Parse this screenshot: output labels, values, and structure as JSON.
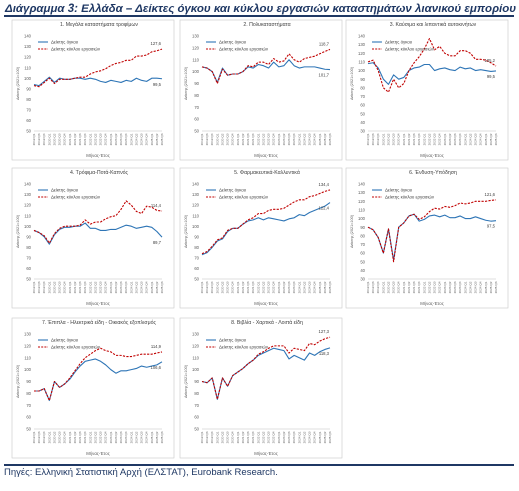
{
  "page": {
    "title": "Διάγραμμα 3: Ελλάδα – Δείκτες όγκου και κύκλου εργασιών καταστημάτων λιανικού εμπορίου",
    "source": "Πηγές: Ελληνική Στατιστική Αρχή (ΕΛΣΤΑΤ), Eurobank Research."
  },
  "colors": {
    "volume": "#2e75b6",
    "turnover": "#c00000"
  },
  "chart_data": [
    {
      "type": "line",
      "title": "1. Μεγάλα καταστήματα τροφίμων",
      "xlabel": "Μήνας-Έτος",
      "ylabel": "Δείκτης (2021=100)",
      "ylim": [
        50,
        140
      ],
      "yticks": [
        50,
        60,
        70,
        80,
        90,
        100,
        110,
        120,
        130,
        140
      ],
      "categories": [
        "2019 Q1",
        "2019 Q3",
        "2019 Q4",
        "2020 Q1",
        "2020 Q2",
        "2020 Q3",
        "2020 Q4",
        "2021 Q1",
        "2021 Q2",
        "2021 Q3",
        "2021 Q4",
        "2022 Q1",
        "2022 Q2",
        "2022 Q3",
        "2022 Q4",
        "2023 Q1",
        "2023 Q2",
        "2023 Q3",
        "2023 Q4",
        "2024 Q1",
        "2024 Q2",
        "2024 Q3",
        "2024 Q4",
        "2025 Q1",
        "2025 Q2",
        "2025 Q3"
      ],
      "series": [
        {
          "name": "Δείκτης όγκου",
          "values": [
            94,
            93,
            97,
            101,
            96,
            100,
            99,
            99,
            100,
            100,
            99,
            100,
            99,
            97,
            96,
            98,
            97,
            96,
            98,
            97,
            100,
            98,
            97,
            100,
            100,
            99.5
          ]
        },
        {
          "name": "Δείκτης κύκλου εργασιών",
          "values": [
            93,
            92,
            96,
            100,
            95,
            99,
            99,
            99,
            100,
            101,
            101,
            104,
            106,
            107,
            109,
            112,
            114,
            115,
            117,
            117,
            121,
            121,
            122,
            125,
            126,
            127.6
          ]
        }
      ],
      "annotations": [
        "127,6",
        "99,5"
      ],
      "grid": false,
      "legend": "top-left"
    },
    {
      "type": "line",
      "title": "2. Πολυκαταστήματα",
      "xlabel": "Μήνας-Έτος",
      "ylabel": "Δείκτης (2021=100)",
      "ylim": [
        50,
        130
      ],
      "yticks": [
        50,
        60,
        70,
        80,
        90,
        100,
        110,
        120,
        130
      ],
      "categories": [
        "2019 Q1",
        "2019 Q3",
        "2019 Q4",
        "2020 Q1",
        "2020 Q2",
        "2020 Q3",
        "2020 Q4",
        "2021 Q1",
        "2021 Q2",
        "2021 Q3",
        "2021 Q4",
        "2022 Q1",
        "2022 Q2",
        "2022 Q3",
        "2022 Q4",
        "2023 Q1",
        "2023 Q2",
        "2023 Q3",
        "2023 Q4",
        "2024 Q1",
        "2024 Q2",
        "2024 Q3",
        "2024 Q4",
        "2025 Q1",
        "2025 Q2",
        "2025 Q3"
      ],
      "series": [
        {
          "name": "Δείκτης όγκου",
          "values": [
            104,
            103,
            100,
            91,
            103,
            97,
            98,
            98,
            100,
            104,
            103,
            106,
            105,
            103,
            108,
            104,
            105,
            110,
            105,
            103,
            104,
            104,
            104,
            103,
            102,
            101.7
          ]
        },
        {
          "name": "Δείκτης κύκλου εργασιών",
          "values": [
            104,
            103,
            100,
            90,
            102,
            97,
            98,
            98,
            100,
            105,
            104,
            108,
            108,
            106,
            111,
            108,
            109,
            115,
            110,
            108,
            111,
            112,
            113,
            115,
            117,
            118.7
          ]
        }
      ],
      "annotations": [
        "118,7",
        "101,7"
      ],
      "grid": false,
      "legend": "top-left"
    },
    {
      "type": "line",
      "title": "3. Καύσιμα και λιπαντικά αυτοκινήτων",
      "xlabel": "Μήνας-Έτος",
      "ylabel": "Δείκτης (2021=100)",
      "ylim": [
        30,
        140
      ],
      "yticks": [
        30,
        40,
        50,
        60,
        70,
        80,
        90,
        100,
        110,
        120,
        130,
        140
      ],
      "categories": [
        "2019 Q1",
        "2019 Q3",
        "2019 Q4",
        "2020 Q1",
        "2020 Q2",
        "2020 Q3",
        "2020 Q4",
        "2021 Q1",
        "2021 Q2",
        "2021 Q3",
        "2021 Q4",
        "2022 Q1",
        "2022 Q2",
        "2022 Q3",
        "2022 Q4",
        "2023 Q1",
        "2023 Q2",
        "2023 Q3",
        "2023 Q4",
        "2024 Q1",
        "2024 Q2",
        "2024 Q3",
        "2024 Q4",
        "2025 Q1",
        "2025 Q2",
        "2025 Q3"
      ],
      "series": [
        {
          "name": "Δείκτης όγκου",
          "values": [
            108,
            109,
            103,
            90,
            84,
            95,
            90,
            92,
            100,
            103,
            104,
            107,
            107,
            100,
            102,
            103,
            101,
            100,
            104,
            102,
            103,
            100,
            101,
            100,
            99,
            99.5
          ]
        },
        {
          "name": "Δείκτης κύκλου εργασιών",
          "values": [
            110,
            112,
            100,
            80,
            75,
            90,
            80,
            85,
            100,
            109,
            116,
            125,
            137,
            124,
            128,
            120,
            117,
            117,
            123,
            123,
            120,
            113,
            113,
            112,
            109,
            105.2
          ]
        }
      ],
      "annotations": [
        "105,2",
        "99,5"
      ],
      "grid": false,
      "legend": "top-left"
    },
    {
      "type": "line",
      "title": "4. Τρόφιμα-Ποτά-Καπνός",
      "xlabel": "Μήνας-Έτος",
      "ylabel": "Δείκτης (2021=100)",
      "ylim": [
        50,
        140
      ],
      "yticks": [
        50,
        60,
        70,
        80,
        90,
        100,
        110,
        120,
        130,
        140
      ],
      "categories": [
        "2019 Q1",
        "2019 Q3",
        "2019 Q4",
        "2020 Q1",
        "2020 Q2",
        "2020 Q3",
        "2020 Q4",
        "2021 Q1",
        "2021 Q2",
        "2021 Q3",
        "2021 Q4",
        "2022 Q1",
        "2022 Q2",
        "2022 Q3",
        "2022 Q4",
        "2023 Q1",
        "2023 Q2",
        "2023 Q3",
        "2023 Q4",
        "2024 Q1",
        "2024 Q2",
        "2024 Q3",
        "2024 Q4",
        "2025 Q1",
        "2025 Q2",
        "2025 Q3"
      ],
      "series": [
        {
          "name": "Δείκτης όγκου",
          "values": [
            96,
            94,
            90,
            83,
            92,
            97,
            99,
            99,
            100,
            100,
            103,
            98,
            98,
            96,
            96,
            97,
            97,
            99,
            101,
            100,
            98,
            99,
            100,
            99,
            95,
            89.7
          ]
        },
        {
          "name": "Δείκτης κύκλου εργασιών",
          "values": [
            96,
            94,
            91,
            84,
            93,
            98,
            100,
            100,
            100,
            101,
            106,
            102,
            104,
            104,
            107,
            109,
            110,
            116,
            124,
            120,
            114,
            112,
            119,
            118,
            115,
            114.4
          ]
        }
      ],
      "annotations": [
        "114,4",
        "89,7"
      ],
      "grid": false,
      "legend": "top-left"
    },
    {
      "type": "line",
      "title": "5. Φαρμακευτικά-Καλλυντικά",
      "xlabel": "Μήνας-Έτος",
      "ylabel": "Δείκτης (2021=100)",
      "ylim": [
        50,
        140
      ],
      "yticks": [
        50,
        60,
        70,
        80,
        90,
        100,
        110,
        120,
        130,
        140
      ],
      "categories": [
        "2019 Q1",
        "2019 Q3",
        "2019 Q4",
        "2020 Q1",
        "2020 Q2",
        "2020 Q3",
        "2020 Q4",
        "2021 Q1",
        "2021 Q2",
        "2021 Q3",
        "2021 Q4",
        "2022 Q1",
        "2022 Q2",
        "2022 Q3",
        "2022 Q4",
        "2023 Q1",
        "2023 Q2",
        "2023 Q3",
        "2023 Q4",
        "2024 Q1",
        "2024 Q2",
        "2024 Q3",
        "2024 Q4",
        "2025 Q1",
        "2025 Q2",
        "2025 Q3"
      ],
      "series": [
        {
          "name": "Δείκτης όγκου",
          "values": [
            73,
            75,
            80,
            86,
            88,
            95,
            98,
            98,
            102,
            105,
            106,
            108,
            106,
            108,
            107,
            106,
            105,
            107,
            108,
            111,
            110,
            113,
            115,
            117,
            119,
            122.4
          ]
        },
        {
          "name": "Δείκτης κύκλου εργασιών",
          "values": [
            74,
            76,
            81,
            87,
            89,
            96,
            98,
            98,
            102,
            106,
            108,
            112,
            112,
            115,
            116,
            116,
            117,
            120,
            123,
            125,
            125,
            128,
            129,
            131,
            133,
            134.4
          ]
        }
      ],
      "annotations": [
        "134,4",
        "122,4"
      ],
      "grid": false,
      "legend": "top-left"
    },
    {
      "type": "line",
      "title": "6. Ένδυση-Υπόδηση",
      "xlabel": "Μήνας-Έτος",
      "ylabel": "Δείκτης (2021=100)",
      "ylim": [
        30,
        140
      ],
      "yticks": [
        30,
        40,
        50,
        60,
        70,
        80,
        90,
        100,
        110,
        120,
        130,
        140
      ],
      "categories": [
        "2019 Q1",
        "2019 Q3",
        "2019 Q4",
        "2020 Q1",
        "2020 Q2",
        "2020 Q3",
        "2020 Q4",
        "2021 Q1",
        "2021 Q2",
        "2021 Q3",
        "2021 Q4",
        "2022 Q1",
        "2022 Q2",
        "2022 Q3",
        "2022 Q4",
        "2023 Q1",
        "2023 Q2",
        "2023 Q3",
        "2023 Q4",
        "2024 Q1",
        "2024 Q2",
        "2024 Q3",
        "2024 Q4",
        "2025 Q1",
        "2025 Q2",
        "2025 Q3"
      ],
      "series": [
        {
          "name": "Δείκτης όγκου",
          "values": [
            90,
            87,
            78,
            60,
            88,
            52,
            90,
            95,
            103,
            105,
            97,
            99,
            103,
            104,
            102,
            104,
            101,
            101,
            103,
            100,
            100,
            102,
            100,
            98,
            97,
            97.5
          ]
        },
        {
          "name": "Δείκτης κύκλου εργασιών",
          "values": [
            90,
            87,
            78,
            60,
            88,
            50,
            90,
            95,
            103,
            105,
            99,
            102,
            108,
            112,
            111,
            114,
            113,
            115,
            118,
            117,
            118,
            120,
            120,
            120,
            121,
            121.6
          ]
        }
      ],
      "annotations": [
        "121,6",
        "97,5"
      ],
      "grid": false,
      "legend": "top-left"
    },
    {
      "type": "line",
      "title": "7. Έπιπλα - Ηλεκτρικά είδη - Οικιακός εξοπλισμός",
      "xlabel": "Μήνας-Έτος",
      "ylabel": "Δείκτης (2021=100)",
      "ylim": [
        50,
        130
      ],
      "yticks": [
        50,
        60,
        70,
        80,
        90,
        100,
        110,
        120,
        130
      ],
      "categories": [
        "2019 Q1",
        "2019 Q3",
        "2019 Q4",
        "2020 Q1",
        "2020 Q2",
        "2020 Q3",
        "2020 Q4",
        "2021 Q1",
        "2021 Q2",
        "2021 Q3",
        "2021 Q4",
        "2022 Q1",
        "2022 Q2",
        "2022 Q3",
        "2022 Q4",
        "2023 Q1",
        "2023 Q2",
        "2023 Q3",
        "2023 Q4",
        "2024 Q1",
        "2024 Q2",
        "2024 Q3",
        "2024 Q4",
        "2025 Q1",
        "2025 Q2",
        "2025 Q3"
      ],
      "series": [
        {
          "name": "Δείκτης όγκου",
          "values": [
            82,
            82,
            84,
            74,
            90,
            85,
            88,
            92,
            98,
            103,
            107,
            108,
            109,
            107,
            104,
            100,
            97,
            99,
            99,
            100,
            101,
            103,
            102,
            103,
            104,
            106.6
          ]
        },
        {
          "name": "Δείκτης κύκλου εργασιών",
          "values": [
            82,
            82,
            84,
            74,
            90,
            85,
            88,
            93,
            99,
            105,
            110,
            113,
            116,
            118,
            116,
            115,
            112,
            112,
            111,
            111,
            112,
            113,
            113,
            113,
            114,
            114.9
          ]
        }
      ],
      "annotations": [
        "114,9",
        "106,6"
      ],
      "grid": false,
      "legend": "top-left"
    },
    {
      "type": "line",
      "title": "8. Βιβλία - Χαρτικά - Λοιπά είδη",
      "xlabel": "Μήνας-Έτος",
      "ylabel": "Δείκτης (2021=100)",
      "ylim": [
        50,
        130
      ],
      "yticks": [
        50,
        60,
        70,
        80,
        90,
        100,
        110,
        120,
        130
      ],
      "categories": [
        "2019 Q1",
        "2019 Q3",
        "2019 Q4",
        "2020 Q1",
        "2020 Q2",
        "2020 Q3",
        "2020 Q4",
        "2021 Q1",
        "2021 Q2",
        "2021 Q3",
        "2021 Q4",
        "2022 Q1",
        "2022 Q2",
        "2022 Q3",
        "2022 Q4",
        "2023 Q1",
        "2023 Q2",
        "2023 Q3",
        "2023 Q4",
        "2024 Q1",
        "2024 Q2",
        "2024 Q3",
        "2024 Q4",
        "2025 Q1",
        "2025 Q2",
        "2025 Q3"
      ],
      "series": [
        {
          "name": "Δείκτης όγκου",
          "values": [
            90,
            89,
            93,
            75,
            93,
            86,
            95,
            98,
            101,
            105,
            108,
            112,
            114,
            116,
            118,
            117,
            116,
            109,
            112,
            110,
            108,
            114,
            112,
            115,
            117,
            118.3
          ]
        },
        {
          "name": "Δείκτης κύκλου εργασιών",
          "values": [
            90,
            89,
            93,
            75,
            93,
            86,
            95,
            98,
            101,
            105,
            108,
            113,
            115,
            118,
            120,
            120,
            120,
            114,
            118,
            117,
            116,
            122,
            121,
            124,
            126,
            127.3
          ]
        }
      ],
      "annotations": [
        "127,3",
        "118,3"
      ],
      "grid": false,
      "legend": "top-left"
    }
  ]
}
